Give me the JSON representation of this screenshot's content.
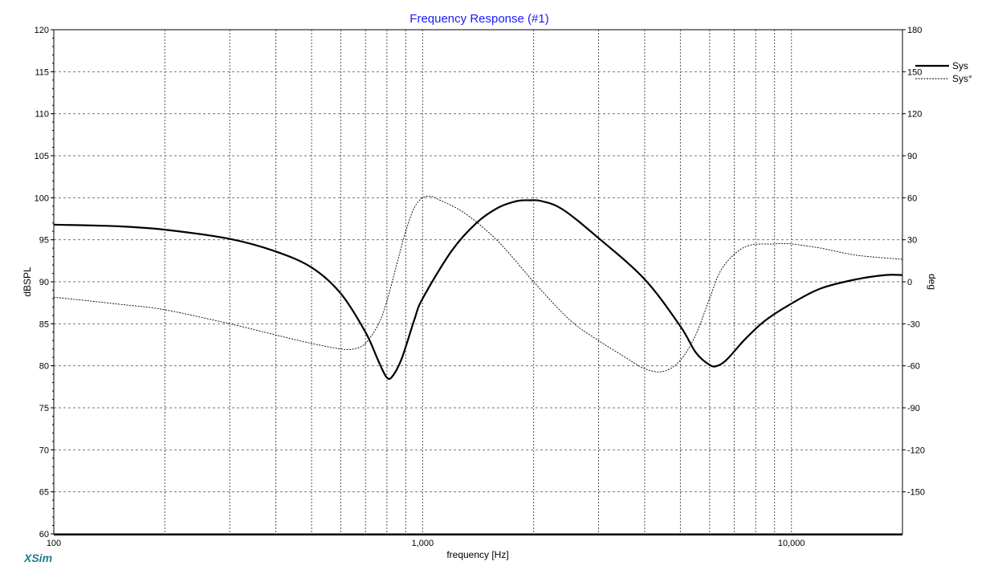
{
  "brand": "XSim",
  "chart_data": {
    "type": "line",
    "title": "Frequency Response (#1)",
    "xlabel": "frequency [Hz]",
    "ylabel": "dBSPL",
    "y2label": "deg",
    "x_scale": "log",
    "xlim": [
      100,
      20000
    ],
    "ylim": [
      60,
      120
    ],
    "y2lim": [
      -180,
      180
    ],
    "x_tick_labels": [
      {
        "value": 100,
        "label": "100"
      },
      {
        "value": 1000,
        "label": "1,000"
      },
      {
        "value": 10000,
        "label": "10,000"
      }
    ],
    "y_ticks": [
      60,
      65,
      70,
      75,
      80,
      85,
      90,
      95,
      100,
      105,
      110,
      115,
      120
    ],
    "y2_ticks": [
      -150,
      -120,
      -90,
      -60,
      -30,
      0,
      30,
      60,
      90,
      120,
      150,
      180
    ],
    "grid": true,
    "legend_position": "top-right",
    "series": [
      {
        "name": "Sys",
        "axis": "left",
        "style": "solid-bold",
        "color": "#000000",
        "points": [
          [
            100,
            96.8
          ],
          [
            150,
            96.6
          ],
          [
            200,
            96.2
          ],
          [
            300,
            95.1
          ],
          [
            400,
            93.6
          ],
          [
            500,
            91.7
          ],
          [
            600,
            88.6
          ],
          [
            700,
            84.0
          ],
          [
            760,
            80.5
          ],
          [
            800,
            78.6
          ],
          [
            830,
            78.8
          ],
          [
            880,
            81.0
          ],
          [
            950,
            85.5
          ],
          [
            1000,
            88.0
          ],
          [
            1200,
            93.7
          ],
          [
            1400,
            97.0
          ],
          [
            1600,
            98.8
          ],
          [
            1800,
            99.6
          ],
          [
            1950,
            99.7
          ],
          [
            2100,
            99.6
          ],
          [
            2400,
            98.6
          ],
          [
            3000,
            95.2
          ],
          [
            4000,
            90.3
          ],
          [
            5000,
            84.7
          ],
          [
            5500,
            81.6
          ],
          [
            6000,
            80.1
          ],
          [
            6300,
            80.0
          ],
          [
            6700,
            80.8
          ],
          [
            7500,
            83.2
          ],
          [
            8500,
            85.4
          ],
          [
            10000,
            87.4
          ],
          [
            12000,
            89.2
          ],
          [
            15000,
            90.3
          ],
          [
            18000,
            90.8
          ],
          [
            20000,
            90.8
          ]
        ]
      },
      {
        "name": "Sys°",
        "axis": "right",
        "style": "dashed",
        "color": "#000000",
        "points": [
          [
            100,
            -11
          ],
          [
            150,
            -16
          ],
          [
            200,
            -20
          ],
          [
            300,
            -30
          ],
          [
            400,
            -38
          ],
          [
            500,
            -44
          ],
          [
            600,
            -48
          ],
          [
            650,
            -48
          ],
          [
            700,
            -44
          ],
          [
            760,
            -30
          ],
          [
            800,
            -14
          ],
          [
            850,
            12
          ],
          [
            900,
            36
          ],
          [
            950,
            53
          ],
          [
            1000,
            60
          ],
          [
            1050,
            61
          ],
          [
            1100,
            59
          ],
          [
            1300,
            49
          ],
          [
            1600,
            29
          ],
          [
            2000,
            0
          ],
          [
            2500,
            -27
          ],
          [
            3000,
            -42
          ],
          [
            3500,
            -53
          ],
          [
            4000,
            -62
          ],
          [
            4500,
            -64
          ],
          [
            5000,
            -56
          ],
          [
            5500,
            -38
          ],
          [
            6000,
            -12
          ],
          [
            6500,
            10
          ],
          [
            7500,
            25
          ],
          [
            9000,
            27
          ],
          [
            10000,
            27
          ],
          [
            12000,
            24
          ],
          [
            15000,
            19
          ],
          [
            20000,
            16
          ]
        ]
      }
    ]
  }
}
